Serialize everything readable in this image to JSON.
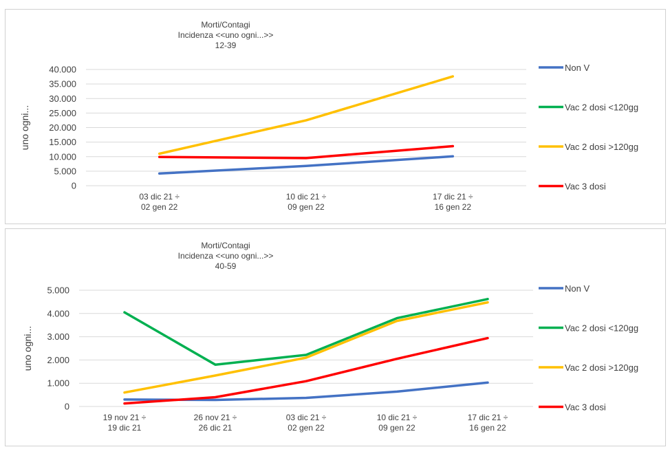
{
  "chart_data": [
    {
      "type": "line",
      "title": "Morti/Contagi",
      "subtitle": "Incidenza <<uno ogni...>>",
      "age_group": "12-39",
      "ylabel": "uno ogni...",
      "xlabel": "",
      "ylim": [
        0,
        40000
      ],
      "yticks": [
        "0",
        "5.000",
        "10.000",
        "15.000",
        "20.000",
        "25.000",
        "30.000",
        "35.000",
        "40.000"
      ],
      "categories": [
        [
          "03 dic 21 ÷",
          "02 gen 22"
        ],
        [
          "10 dic 21 ÷",
          "09 gen 22"
        ],
        [
          "17 dic 21 ÷",
          "16 gen 22"
        ]
      ],
      "grid": true,
      "legend_position": "right",
      "series": [
        {
          "name": "Non V",
          "color": "#4472C4",
          "values": [
            4200,
            6800,
            10100
          ]
        },
        {
          "name": "Vac 2 dosi <120gg",
          "color": "#00B050",
          "values": [
            null,
            null,
            null
          ]
        },
        {
          "name": "Vac 2 dosi >120gg",
          "color": "#FFC000",
          "values": [
            11000,
            22500,
            37600
          ]
        },
        {
          "name": "Vac 3 dosi",
          "color": "#FF0000",
          "values": [
            9900,
            9500,
            13600
          ]
        }
      ]
    },
    {
      "type": "line",
      "title": "Morti/Contagi",
      "subtitle": "Incidenza <<uno ogni...>>",
      "age_group": "40-59",
      "ylabel": "uno ogni...",
      "xlabel": "",
      "ylim": [
        0,
        5000
      ],
      "yticks": [
        "0",
        "1.000",
        "2.000",
        "3.000",
        "4.000",
        "5.000"
      ],
      "categories": [
        [
          "19 nov 21 ÷",
          "19 dic 21"
        ],
        [
          "26 nov 21 ÷",
          "26 dic 21"
        ],
        [
          "03 dic 21 ÷",
          "02 gen 22"
        ],
        [
          "10 dic 21 ÷",
          "09 gen 22"
        ],
        [
          "17 dic 21 ÷",
          "16 gen 22"
        ]
      ],
      "grid": true,
      "legend_position": "right",
      "series": [
        {
          "name": "Non V",
          "color": "#4472C4",
          "values": [
            300,
            280,
            370,
            640,
            1030
          ]
        },
        {
          "name": "Vac 2 dosi <120gg",
          "color": "#00B050",
          "values": [
            4050,
            1800,
            2220,
            3800,
            4620
          ]
        },
        {
          "name": "Vac 2 dosi >120gg",
          "color": "#FFC000",
          "values": [
            600,
            1330,
            2100,
            3680,
            4480
          ]
        },
        {
          "name": "Vac 3 dosi",
          "color": "#FF0000",
          "values": [
            130,
            400,
            1090,
            2050,
            2940
          ]
        }
      ]
    }
  ]
}
